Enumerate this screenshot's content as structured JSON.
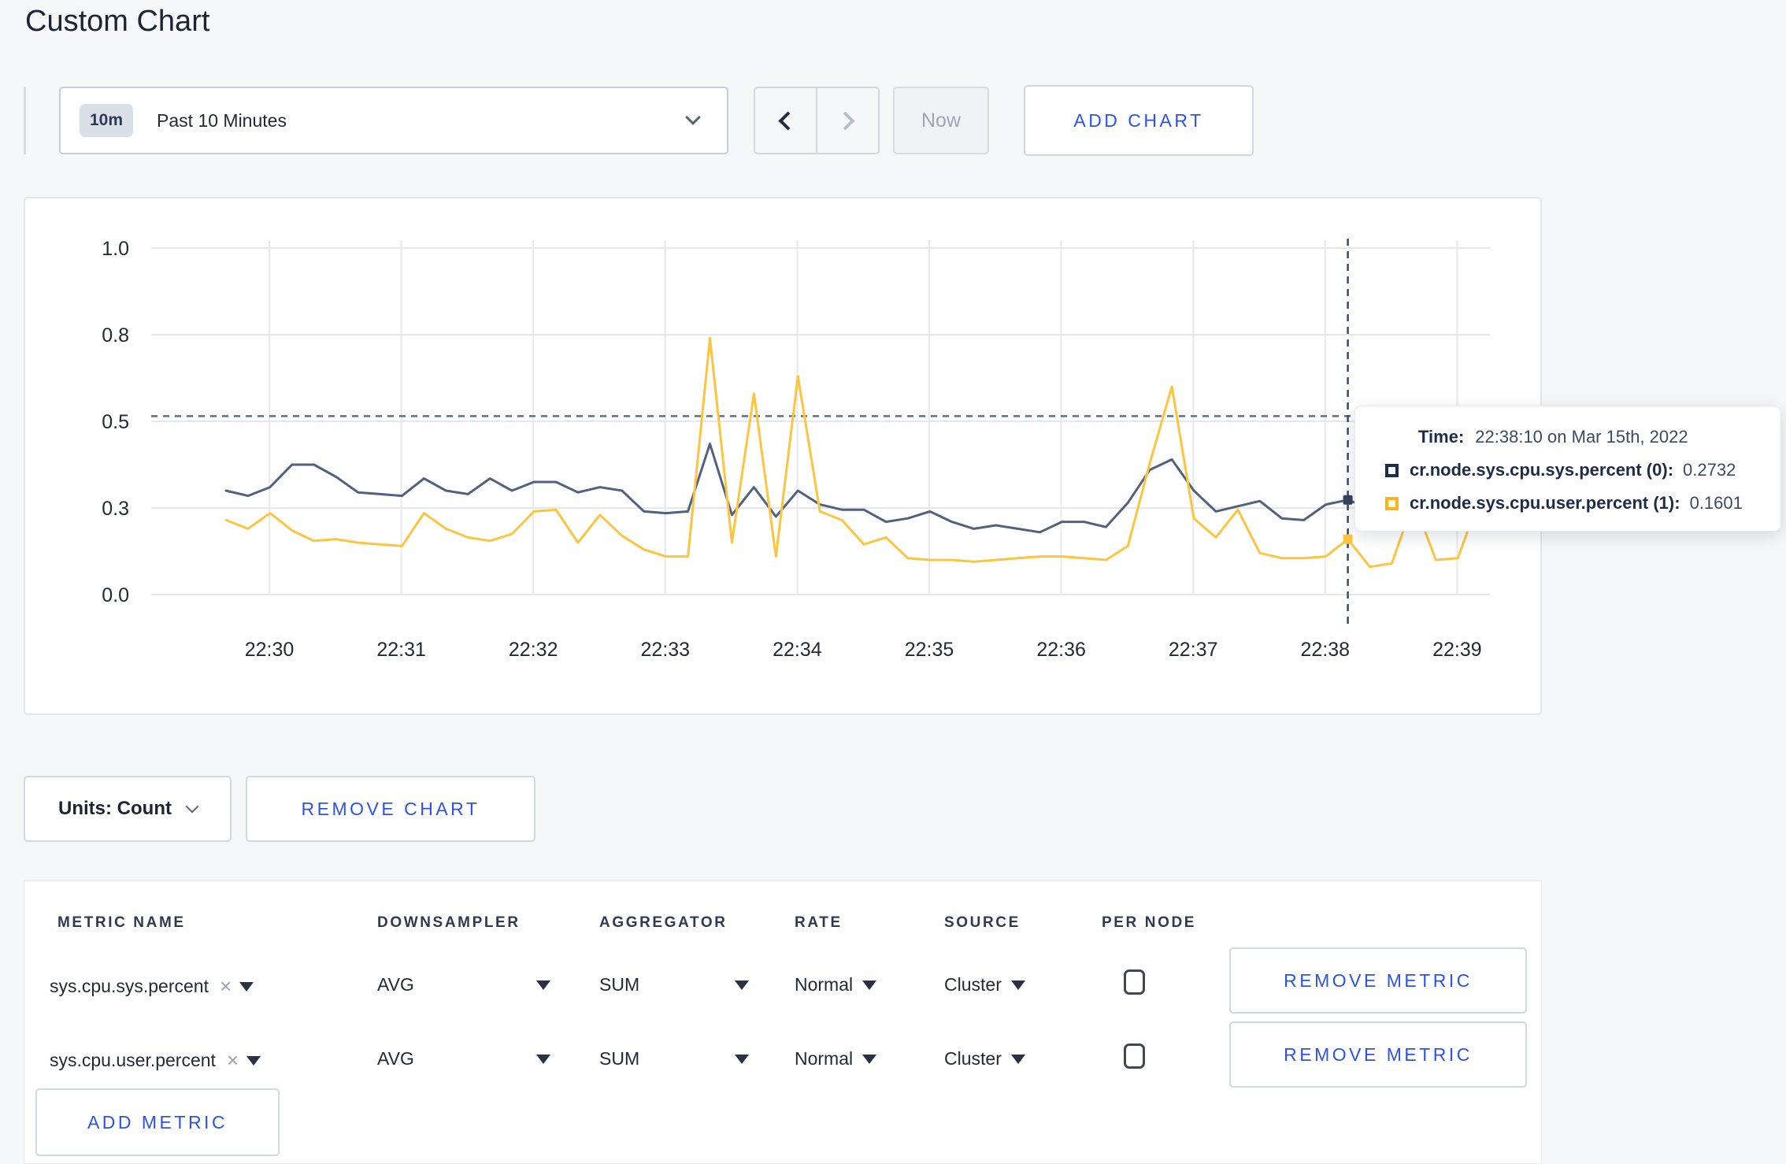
{
  "page": {
    "title": "Custom Chart"
  },
  "toolbar": {
    "time_range": {
      "badge": "10m",
      "label": "Past 10 Minutes"
    },
    "now_label": "Now",
    "add_chart_label": "ADD CHART"
  },
  "icons": {
    "chevron_down": "chevron-down",
    "chevron_left": "chevron-left",
    "chevron_right": "chevron-right",
    "close": "×",
    "caret_down": "caret-down"
  },
  "chart_data": {
    "type": "line",
    "title": "",
    "xlabel": "",
    "ylabel": "",
    "ylim": [
      0,
      1
    ],
    "grid": true,
    "y_tick_labels": [
      "0.0",
      "0.3",
      "0.5",
      "0.8",
      "1.0"
    ],
    "x_tick_labels": [
      "22:30",
      "22:31",
      "22:32",
      "22:33",
      "22:34",
      "22:35",
      "22:36",
      "22:37",
      "22:38",
      "22:39"
    ],
    "x_start_time": "22:29:40",
    "x_step_seconds": 10,
    "series": [
      {
        "name": "cr.node.sys.cpu.sys.percent",
        "color": "#52617f",
        "values": [
          0.3,
          0.285,
          0.31,
          0.375,
          0.375,
          0.34,
          0.295,
          0.29,
          0.285,
          0.335,
          0.3,
          0.29,
          0.335,
          0.3,
          0.325,
          0.325,
          0.295,
          0.31,
          0.3,
          0.24,
          0.235,
          0.24,
          0.435,
          0.23,
          0.31,
          0.225,
          0.3,
          0.26,
          0.245,
          0.245,
          0.21,
          0.22,
          0.24,
          0.21,
          0.19,
          0.2,
          0.19,
          0.18,
          0.21,
          0.21,
          0.195,
          0.265,
          0.36,
          0.39,
          0.3,
          0.24,
          0.255,
          0.27,
          0.22,
          0.215,
          0.26,
          0.2732,
          0.25,
          0.26,
          0.27,
          0.28,
          0.29,
          0.3
        ]
      },
      {
        "name": "cr.node.sys.cpu.user.percent",
        "color": "#fdc53f",
        "values": [
          0.215,
          0.19,
          0.235,
          0.185,
          0.155,
          0.16,
          0.15,
          0.145,
          0.14,
          0.235,
          0.19,
          0.165,
          0.155,
          0.175,
          0.24,
          0.245,
          0.15,
          0.23,
          0.17,
          0.13,
          0.11,
          0.11,
          0.74,
          0.15,
          0.58,
          0.11,
          0.63,
          0.24,
          0.215,
          0.145,
          0.165,
          0.105,
          0.1,
          0.1,
          0.095,
          0.1,
          0.105,
          0.11,
          0.11,
          0.105,
          0.1,
          0.14,
          0.38,
          0.6,
          0.22,
          0.165,
          0.245,
          0.12,
          0.105,
          0.105,
          0.11,
          0.1601,
          0.08,
          0.09,
          0.27,
          0.1,
          0.105,
          0.28
        ]
      }
    ],
    "hover": {
      "index": 51,
      "time": "22:38:10",
      "values": [
        0.2732,
        0.1601
      ],
      "guide_value": 0.515,
      "guide_color": "#5a7186",
      "crosshair_color": "#3a4a63"
    },
    "legend_position": "tooltip"
  },
  "tooltip": {
    "time_label": "Time:",
    "time_value": "22:38:10 on Mar 15th, 2022",
    "rows": [
      {
        "label": "cr.node.sys.cpu.sys.percent (0):",
        "value": "0.2732",
        "swatch_color": "#1e2b49"
      },
      {
        "label": "cr.node.sys.cpu.user.percent (1):",
        "value": "0.1601",
        "swatch_color": "#fdb515"
      }
    ]
  },
  "chart_footer": {
    "units_label": "Units: Count",
    "remove_chart_label": "REMOVE CHART"
  },
  "metrics_table": {
    "headers": [
      "METRIC NAME",
      "DOWNSAMPLER",
      "AGGREGATOR",
      "RATE",
      "SOURCE",
      "PER NODE"
    ],
    "rows": [
      {
        "metric": "sys.cpu.sys.percent",
        "downsampler": "AVG",
        "aggregator": "SUM",
        "rate": "Normal",
        "source": "Cluster",
        "per_node_checked": false,
        "remove_label": "REMOVE METRIC"
      },
      {
        "metric": "sys.cpu.user.percent",
        "downsampler": "AVG",
        "aggregator": "SUM",
        "rate": "Normal",
        "source": "Cluster",
        "per_node_checked": false,
        "remove_label": "REMOVE METRIC"
      }
    ],
    "add_metric_label": "ADD METRIC"
  }
}
